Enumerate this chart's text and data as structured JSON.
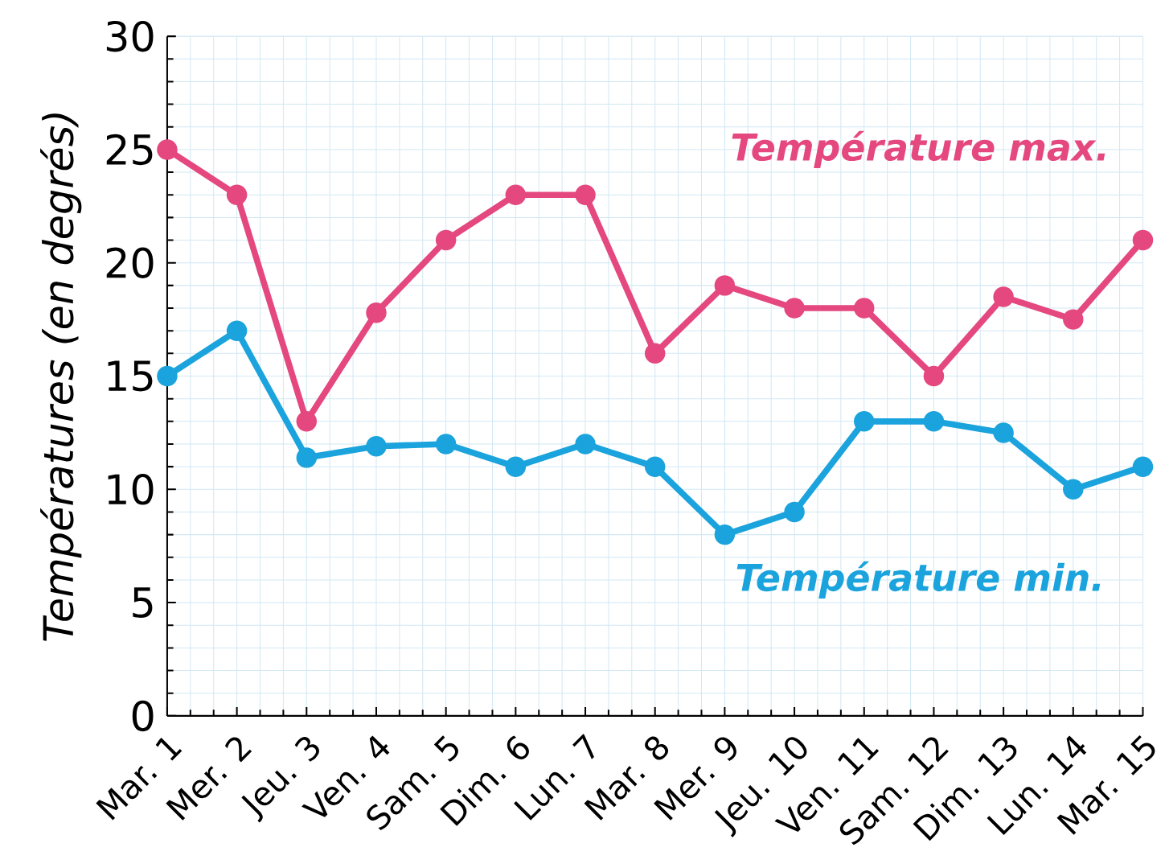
{
  "chart_data": {
    "type": "line",
    "ylabel": "Températures  (en degrés)",
    "categories": [
      "Mar. 1",
      "Mer. 2",
      "Jeu. 3",
      "Ven. 4",
      "Sam. 5",
      "Dim. 6",
      "Lun. 7",
      "Mar. 8",
      "Mer. 9",
      "Jeu. 10",
      "Ven. 11",
      "Sam. 12",
      "Dim. 13",
      "Lun. 14",
      "Mar. 15"
    ],
    "series": [
      {
        "name": "Température max.",
        "color": "#e4487e",
        "values": [
          25,
          23,
          13,
          17.8,
          21,
          23,
          23,
          16,
          19,
          18,
          18,
          15,
          18.5,
          17.5,
          21
        ]
      },
      {
        "name": "Température min.",
        "color": "#1aa3dc",
        "values": [
          15,
          17,
          11.4,
          11.9,
          12,
          11,
          12,
          11,
          8,
          9,
          13,
          13,
          12.5,
          10,
          11
        ]
      }
    ],
    "ylim": [
      0,
      30
    ],
    "yticks": [
      0,
      5,
      10,
      15,
      20,
      25,
      30
    ],
    "grid": true,
    "marker": "circle"
  }
}
